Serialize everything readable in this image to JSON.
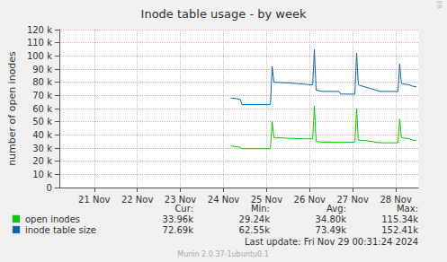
{
  "chart_data": {
    "type": "line",
    "title": "Inode table usage - by week",
    "y_label": "number of open inodes",
    "grid": true,
    "xlim": [
      20.69,
      29.02
    ],
    "xticks": [
      {
        "value": 21.5,
        "label": "21 Nov"
      },
      {
        "value": 22.5,
        "label": "22 Nov"
      },
      {
        "value": 23.5,
        "label": "23 Nov"
      },
      {
        "value": 24.5,
        "label": "24 Nov"
      },
      {
        "value": 25.5,
        "label": "25 Nov"
      },
      {
        "value": 26.5,
        "label": "26 Nov"
      },
      {
        "value": 27.5,
        "label": "27 Nov"
      },
      {
        "value": 28.5,
        "label": "28 Nov"
      }
    ],
    "ylim": [
      0,
      120000
    ],
    "yticks": [
      0,
      {
        "value": 10000,
        "label": "10 k"
      },
      {
        "value": 20000,
        "label": "20 k"
      },
      {
        "value": 30000,
        "label": "30 k"
      },
      {
        "value": 40000,
        "label": "40 k"
      },
      {
        "value": 50000,
        "label": "50 k"
      },
      {
        "value": 60000,
        "label": "60 k"
      },
      {
        "value": 70000,
        "label": "70 k"
      },
      {
        "value": 80000,
        "label": "80 k"
      },
      {
        "value": 90000,
        "label": "90 k"
      },
      {
        "value": 100000,
        "label": "100 k"
      },
      {
        "value": 110000,
        "label": "110 k"
      },
      {
        "value": 120000,
        "label": "120 k"
      }
    ],
    "x": [
      24.67,
      24.81,
      24.89,
      24.93,
      25.59,
      25.63,
      25.67,
      26.0,
      26.4,
      26.57,
      26.61,
      26.65,
      26.81,
      27.18,
      27.22,
      27.55,
      27.59,
      27.63,
      27.83,
      28.04,
      28.14,
      28.55,
      28.59,
      28.63,
      28.81,
      28.89,
      28.98
    ],
    "stat_headers": [
      "Cur:",
      "Min:",
      "Avg:",
      "Max:"
    ],
    "series": [
      {
        "name": "open inodes",
        "color": "#00cc00",
        "values": [
          31500,
          31000,
          30500,
          29500,
          29500,
          50000,
          38000,
          37500,
          37000,
          37000,
          62000,
          35000,
          34500,
          34500,
          34500,
          34500,
          60000,
          36000,
          35500,
          34500,
          34000,
          34000,
          52000,
          38000,
          37000,
          36000,
          35500
        ],
        "stats": [
          "33.96k",
          "29.24k",
          "34.80k",
          "115.34k"
        ]
      },
      {
        "name": "inode table size",
        "color": "#0066b3",
        "values": [
          68000,
          67500,
          67000,
          63000,
          63000,
          92000,
          80000,
          79500,
          78500,
          78000,
          105000,
          74000,
          73000,
          73000,
          71000,
          71000,
          102000,
          78000,
          76000,
          74000,
          73000,
          73000,
          94000,
          79000,
          78000,
          77000,
          76500
        ],
        "stats": [
          "72.69k",
          "62.55k",
          "73.49k",
          "152.41k"
        ]
      }
    ],
    "last_update": "Last update: Fri Nov 29 00:31:24 2024",
    "footer": "Munin 2.0.37-1ubuntu0.1",
    "side_text": "RRDTOOL / TOBI OETIKER"
  }
}
